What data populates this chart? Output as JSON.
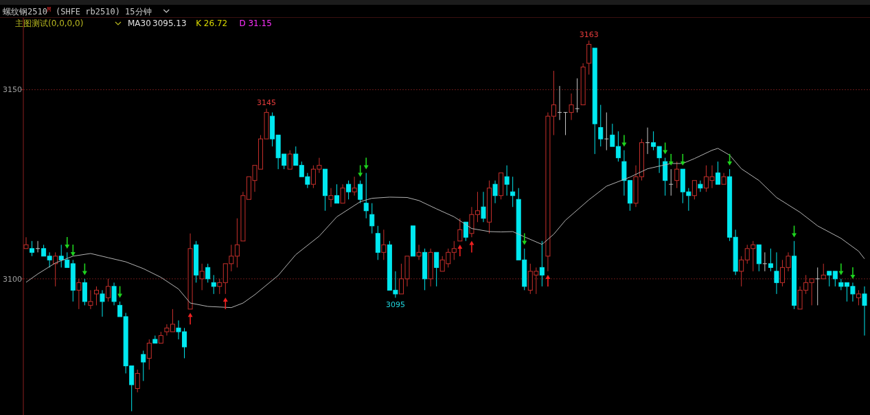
{
  "chart_data": {
    "type": "candlestick",
    "title": "螺纹钢2510$^{M}$ (SHFE rb2510)  15分钟",
    "subtitle": "主图测试(0,0,0,0)",
    "categories": [
      null,
      null,
      null,
      null,
      null,
      null,
      null,
      null,
      null,
      null,
      null,
      null,
      null,
      null,
      null,
      null,
      null,
      null,
      null,
      null,
      null,
      null,
      null,
      null,
      null,
      null,
      null,
      null,
      null,
      null,
      null,
      null,
      null,
      null,
      null,
      null,
      null,
      null,
      null,
      null,
      null,
      null,
      null,
      null,
      null,
      null,
      null,
      null,
      null,
      null,
      null,
      null,
      null,
      null,
      null,
      null,
      null,
      null,
      null,
      null,
      null,
      null,
      null,
      null,
      null,
      null,
      null,
      null,
      null,
      null,
      null,
      null,
      null,
      null,
      null,
      null,
      null,
      null,
      null,
      null,
      null,
      null,
      null,
      null,
      null,
      null,
      null,
      null,
      null,
      null,
      null,
      null,
      null,
      null,
      null,
      null,
      null,
      null,
      null,
      null,
      null,
      null,
      null,
      null,
      null,
      null,
      null,
      null,
      null,
      null,
      null,
      null,
      null,
      null,
      null,
      null,
      null,
      null,
      null,
      null,
      null,
      null,
      null,
      null,
      null,
      null,
      null,
      null,
      null,
      null,
      null,
      null,
      null,
      null,
      null,
      null,
      null,
      null,
      null,
      null,
      null,
      null,
      null,
      null
    ],
    "ylim": [
      3064,
      3169
    ],
    "yticks": [
      3150,
      3100
    ],
    "grid": "y",
    "legend": "top left",
    "annotations": [
      "3095.13",
      "K 26.72",
      "D 31.15",
      {
        "text": "3145",
        "y": 3145
      },
      {
        "text": "3163",
        "y": 3163
      },
      {
        "text": "3095",
        "y": 3095
      }
    ],
    "series": [
      {
        "ohlc": [
          [
            3108,
            3111,
            3108,
            3109
          ],
          [
            3108,
            3110,
            3106,
            3107
          ],
          [
            3108,
            3110,
            3107,
            3108
          ],
          [
            3108,
            3109,
            3106,
            3106
          ],
          [
            3106,
            3107,
            3103,
            3105
          ],
          [
            3104,
            3107,
            3098,
            3106
          ],
          [
            3106,
            3109,
            3103,
            3105
          ],
          [
            3105,
            3107,
            3103,
            3103
          ],
          [
            3104,
            3105,
            3094,
            3097
          ],
          [
            3097,
            3100,
            3092,
            3099
          ],
          [
            3099,
            3100,
            3093,
            3094
          ],
          [
            3093,
            3097,
            3092,
            3094
          ],
          [
            3096,
            3098,
            3093,
            3097
          ],
          [
            3096,
            3097,
            3090,
            3094
          ],
          [
            3095,
            3100,
            3094,
            3098
          ],
          [
            3098,
            3099,
            3093,
            3094
          ],
          [
            3093,
            3094,
            3090,
            3090
          ],
          [
            3090,
            3091,
            3075,
            3077
          ],
          [
            3077,
            3077,
            3065,
            3072
          ],
          [
            3071,
            3076,
            3070,
            3075
          ],
          [
            3080,
            3081,
            3073,
            3078
          ],
          [
            3079,
            3084,
            3076,
            3083
          ],
          [
            3084,
            3085,
            3083,
            3083
          ],
          [
            3083,
            3086,
            3083,
            3085
          ],
          [
            3086,
            3088,
            3085,
            3087
          ],
          [
            3086,
            3092,
            3086,
            3088
          ],
          [
            3087,
            3089,
            3084,
            3086
          ],
          [
            3086,
            3087,
            3079,
            3082
          ],
          [
            3092,
            3112,
            3092,
            3108
          ],
          [
            3109,
            3110,
            3099,
            3101
          ],
          [
            3100,
            3104,
            3097,
            3102
          ],
          [
            3103,
            3104,
            3099,
            3100
          ],
          [
            3099,
            3101,
            3096,
            3098
          ],
          [
            3098,
            3100,
            3096,
            3099
          ],
          [
            3099,
            3104,
            3096,
            3104
          ],
          [
            3104,
            3109,
            3102,
            3106
          ],
          [
            3106,
            3116,
            3103,
            3109
          ],
          [
            3110,
            3123,
            3110,
            3122
          ],
          [
            3121,
            3127,
            3121,
            3127
          ],
          [
            3126,
            3130,
            3123,
            3130
          ],
          [
            3129,
            3138,
            3129,
            3137
          ],
          [
            3137,
            3145,
            3137,
            3144
          ],
          [
            3143,
            3144,
            3135,
            3137
          ],
          [
            3138,
            3138,
            3129,
            3132
          ],
          [
            3133,
            3133,
            3129,
            3130
          ],
          [
            3129,
            3134,
            3129,
            3133
          ],
          [
            3133,
            3135,
            3130,
            3130
          ],
          [
            3130,
            3131,
            3127,
            3127
          ],
          [
            3127,
            3128,
            3124,
            3125
          ],
          [
            3125,
            3130,
            3124,
            3129
          ],
          [
            3129,
            3132,
            3128,
            3130
          ],
          [
            3129,
            3129,
            3118,
            3122
          ],
          [
            3121,
            3124,
            3119,
            3122
          ],
          [
            3122,
            3125,
            3120,
            3120
          ],
          [
            3120,
            3125,
            3120,
            3124
          ],
          [
            3125,
            3126,
            3121,
            3123
          ],
          [
            3123,
            3127,
            3122,
            3124
          ],
          [
            3125,
            3126,
            3120,
            3121
          ],
          [
            3120,
            3128,
            3116,
            3118
          ],
          [
            3117,
            3120,
            3112,
            3114
          ],
          [
            3112,
            3114,
            3105,
            3107
          ],
          [
            3107,
            3113,
            3105,
            3109
          ],
          [
            3109,
            3110,
            3097,
            3097
          ],
          [
            3097,
            3102,
            3095,
            3096
          ],
          [
            3096,
            3104,
            3096,
            3100
          ],
          [
            3100,
            3106,
            3098,
            3106
          ],
          [
            3114,
            3114,
            3106,
            3106
          ],
          [
            3106,
            3109,
            3105,
            3107
          ],
          [
            3107,
            3108,
            3097,
            3100
          ],
          [
            3100,
            3108,
            3098,
            3107
          ],
          [
            3107,
            3107,
            3098,
            3103
          ],
          [
            3102,
            3106,
            3102,
            3105
          ],
          [
            3104,
            3108,
            3103,
            3107
          ],
          [
            3107,
            3110,
            3105,
            3108
          ],
          [
            3110,
            3116,
            3110,
            3113
          ],
          [
            3115,
            3115,
            3110,
            3111
          ],
          [
            3112,
            3119,
            3111,
            3117
          ],
          [
            3117,
            3123,
            3115,
            3118
          ],
          [
            3119,
            3123,
            3115,
            3116
          ],
          [
            3115,
            3126,
            3112,
            3124
          ],
          [
            3125,
            3126,
            3120,
            3122
          ],
          [
            3122,
            3128,
            3121,
            3128
          ],
          [
            3127,
            3130,
            3122,
            3125
          ],
          [
            3123,
            3127,
            3119,
            3122
          ],
          [
            3121,
            3124,
            3105,
            3105
          ],
          [
            3105,
            3108,
            3097,
            3098
          ],
          [
            3097,
            3104,
            3096,
            3102
          ],
          [
            3101,
            3103,
            3096,
            3102
          ],
          [
            3103,
            3110,
            3098,
            3101
          ],
          [
            3106,
            3144,
            3102,
            3143
          ],
          [
            3143,
            3155,
            3138,
            3146
          ],
          [
            3144,
            3151,
            3142,
            3144
          ],
          [
            3144,
            3144,
            3138,
            3144
          ],
          [
            3144,
            3149,
            3142,
            3146
          ],
          [
            3145,
            3153,
            3144,
            3145
          ],
          [
            3146,
            3157,
            3146,
            3156
          ],
          [
            3157,
            3163,
            3154,
            3162
          ],
          [
            3161,
            3161,
            3133,
            3141
          ],
          [
            3140,
            3146,
            3135,
            3137
          ],
          [
            3137,
            3144,
            3134,
            3137
          ],
          [
            3138,
            3141,
            3135,
            3135
          ],
          [
            3135,
            3139,
            3131,
            3132
          ],
          [
            3131,
            3134,
            3122,
            3126
          ],
          [
            3126,
            3126,
            3118,
            3120
          ],
          [
            3120,
            3130,
            3119,
            3127
          ],
          [
            3127,
            3137,
            3126,
            3136
          ],
          [
            3136,
            3140,
            3133,
            3136
          ],
          [
            3136,
            3139,
            3134,
            3135
          ],
          [
            3135,
            3135,
            3128,
            3132
          ],
          [
            3131,
            3132,
            3122,
            3126
          ],
          [
            3125,
            3129,
            3122,
            3125
          ],
          [
            3126,
            3131,
            3124,
            3129
          ],
          [
            3129,
            3129,
            3120,
            3123
          ],
          [
            3123,
            3124,
            3118,
            3122
          ],
          [
            3122,
            3126,
            3121,
            3126
          ],
          [
            3125,
            3126,
            3123,
            3124
          ],
          [
            3124,
            3130,
            3123,
            3127
          ],
          [
            3126,
            3130,
            3124,
            3127
          ],
          [
            3128,
            3131,
            3125,
            3125
          ],
          [
            3125,
            3128,
            3125,
            3127
          ],
          [
            3127,
            3129,
            3110,
            3111
          ],
          [
            3111,
            3113,
            3101,
            3102
          ],
          [
            3102,
            3106,
            3098,
            3105
          ],
          [
            3105,
            3109,
            3104,
            3108
          ],
          [
            3108,
            3110,
            3102,
            3109
          ],
          [
            3109,
            3109,
            3102,
            3104
          ],
          [
            3104,
            3107,
            3102,
            3104
          ],
          [
            3104,
            3108,
            3102,
            3103
          ],
          [
            3102,
            3107,
            3096,
            3099
          ],
          [
            3099,
            3105,
            3098,
            3103
          ],
          [
            3103,
            3107,
            3102,
            3106
          ],
          [
            3106,
            3110,
            3092,
            3093
          ],
          [
            3092,
            3098,
            3092,
            3097
          ],
          [
            3097,
            3101,
            3096,
            3099
          ],
          [
            3099,
            3100,
            3093,
            3100
          ],
          [
            3100,
            3103,
            3093,
            3100
          ],
          [
            3100,
            3104,
            3100,
            3101
          ],
          [
            3102,
            3102,
            3098,
            3101
          ],
          [
            3102,
            3102,
            3098,
            3100
          ],
          [
            3099,
            3100,
            3097,
            3098
          ],
          [
            3099,
            3099,
            3094,
            3098
          ],
          [
            3098,
            3099,
            3094,
            3096
          ],
          [
            3095,
            3097,
            3093,
            3096
          ],
          [
            3096,
            3098,
            3085,
            3093
          ]
        ]
      },
      {
        "type": "line",
        "name": "MA30",
        "color": "#b4b4b4",
        "values": [
          3099.1,
          null,
          3101.3,
          null,
          null,
          3104.2,
          null,
          null,
          3106,
          null,
          null,
          3106.7,
          null,
          null,
          3105.6,
          null,
          null,
          3104.5,
          null,
          null,
          3102.7,
          null,
          null,
          3100.4,
          null,
          null,
          3097.3,
          null,
          3093.6,
          null,
          null,
          3092.7,
          null,
          null,
          null,
          3092.4,
          null,
          3093.6,
          null,
          3095.8,
          null,
          null,
          null,
          3100.9,
          null,
          null,
          3106.4,
          null,
          null,
          null,
          3111.3,
          null,
          null,
          3116.4,
          null,
          null,
          null,
          3120.4,
          null,
          3121.3,
          null,
          null,
          3121.6,
          null,
          null,
          3121.5,
          null,
          3120.7,
          null,
          null,
          3118.5,
          null,
          null,
          3116.4,
          null,
          null,
          3113.3,
          null,
          null,
          3112.5,
          null,
          3112.4,
          null,
          3112.5,
          null,
          3111.1,
          null,
          null,
          3109.1,
          null,
          3111.8,
          null,
          3115.5,
          null,
          null,
          null,
          3120.9,
          null,
          null,
          3124.5,
          null,
          null,
          null,
          3126.9,
          null,
          null,
          3129.1,
          null,
          null,
          null,
          3130.5,
          null,
          3130.5,
          null,
          3131.8,
          null,
          null,
          3134,
          3134.5,
          null,
          3132.7,
          null,
          3129.1,
          null,
          null,
          3126,
          null,
          null,
          3121.5,
          null,
          null,
          null,
          3117.6,
          null,
          null,
          3114,
          null,
          null,
          null,
          3110.7,
          null,
          null,
          3107.3,
          3105.3
        ]
      },
      {
        "type": "scatter",
        "color": "#1ed21e",
        "values": [
          null,
          null,
          null,
          null,
          null,
          null,
          null,
          3109.5,
          3107.5,
          null,
          3102.5,
          null,
          null,
          null,
          null,
          null,
          3096.5,
          null,
          null,
          null,
          null,
          null,
          null,
          null,
          null,
          null,
          null,
          null,
          null,
          null,
          null,
          null,
          null,
          null,
          null,
          null,
          null,
          null,
          null,
          null,
          null,
          null,
          null,
          null,
          null,
          null,
          null,
          null,
          null,
          null,
          null,
          null,
          null,
          null,
          null,
          null,
          null,
          3128.5,
          3130.5,
          null,
          null,
          null,
          null,
          null,
          null,
          null,
          null,
          null,
          null,
          null,
          null,
          null,
          null,
          null,
          null,
          null,
          null,
          null,
          null,
          null,
          null,
          null,
          null,
          null,
          null,
          3110.5,
          null,
          null,
          null,
          null,
          null,
          null,
          null,
          null,
          null,
          null,
          null,
          null,
          null,
          null,
          null,
          null,
          3136.5,
          null,
          null,
          null,
          null,
          null,
          null,
          3134.5,
          3131.5,
          null,
          3131.5,
          null,
          null,
          null,
          null,
          null,
          null,
          null,
          3131.5,
          null,
          null,
          null,
          null,
          null,
          null,
          null,
          null,
          null,
          null,
          3112.5,
          null,
          null,
          null,
          null,
          null,
          null,
          null,
          3102.5,
          null,
          3101.5,
          null,
          null
        ]
      },
      {
        "type": "scatter",
        "color": "#ee2020",
        "values": [
          null,
          null,
          null,
          null,
          null,
          null,
          null,
          null,
          null,
          null,
          null,
          null,
          null,
          null,
          null,
          null,
          null,
          null,
          null,
          null,
          null,
          null,
          null,
          null,
          null,
          null,
          null,
          null,
          3089.5,
          null,
          null,
          null,
          null,
          null,
          3093.5,
          null,
          null,
          null,
          null,
          null,
          null,
          null,
          null,
          null,
          null,
          null,
          null,
          null,
          null,
          null,
          null,
          null,
          null,
          null,
          null,
          null,
          null,
          null,
          null,
          null,
          null,
          null,
          null,
          null,
          null,
          null,
          null,
          null,
          null,
          null,
          null,
          null,
          null,
          null,
          3107.5,
          null,
          3108.5,
          null,
          null,
          null,
          null,
          null,
          null,
          null,
          null,
          null,
          null,
          null,
          null,
          3099.5,
          null,
          null,
          null,
          null,
          null,
          null,
          null,
          null,
          null,
          null,
          null,
          null,
          null,
          null,
          null,
          null,
          null,
          null,
          null,
          null,
          null,
          null,
          null,
          null,
          null,
          null,
          null,
          null,
          null,
          null,
          null,
          null,
          null,
          null,
          null,
          null,
          null,
          null,
          null,
          null,
          null,
          null,
          null,
          null,
          null,
          null,
          null,
          null,
          null,
          null,
          null,
          null,
          null,
          null
        ]
      }
    ]
  }
}
